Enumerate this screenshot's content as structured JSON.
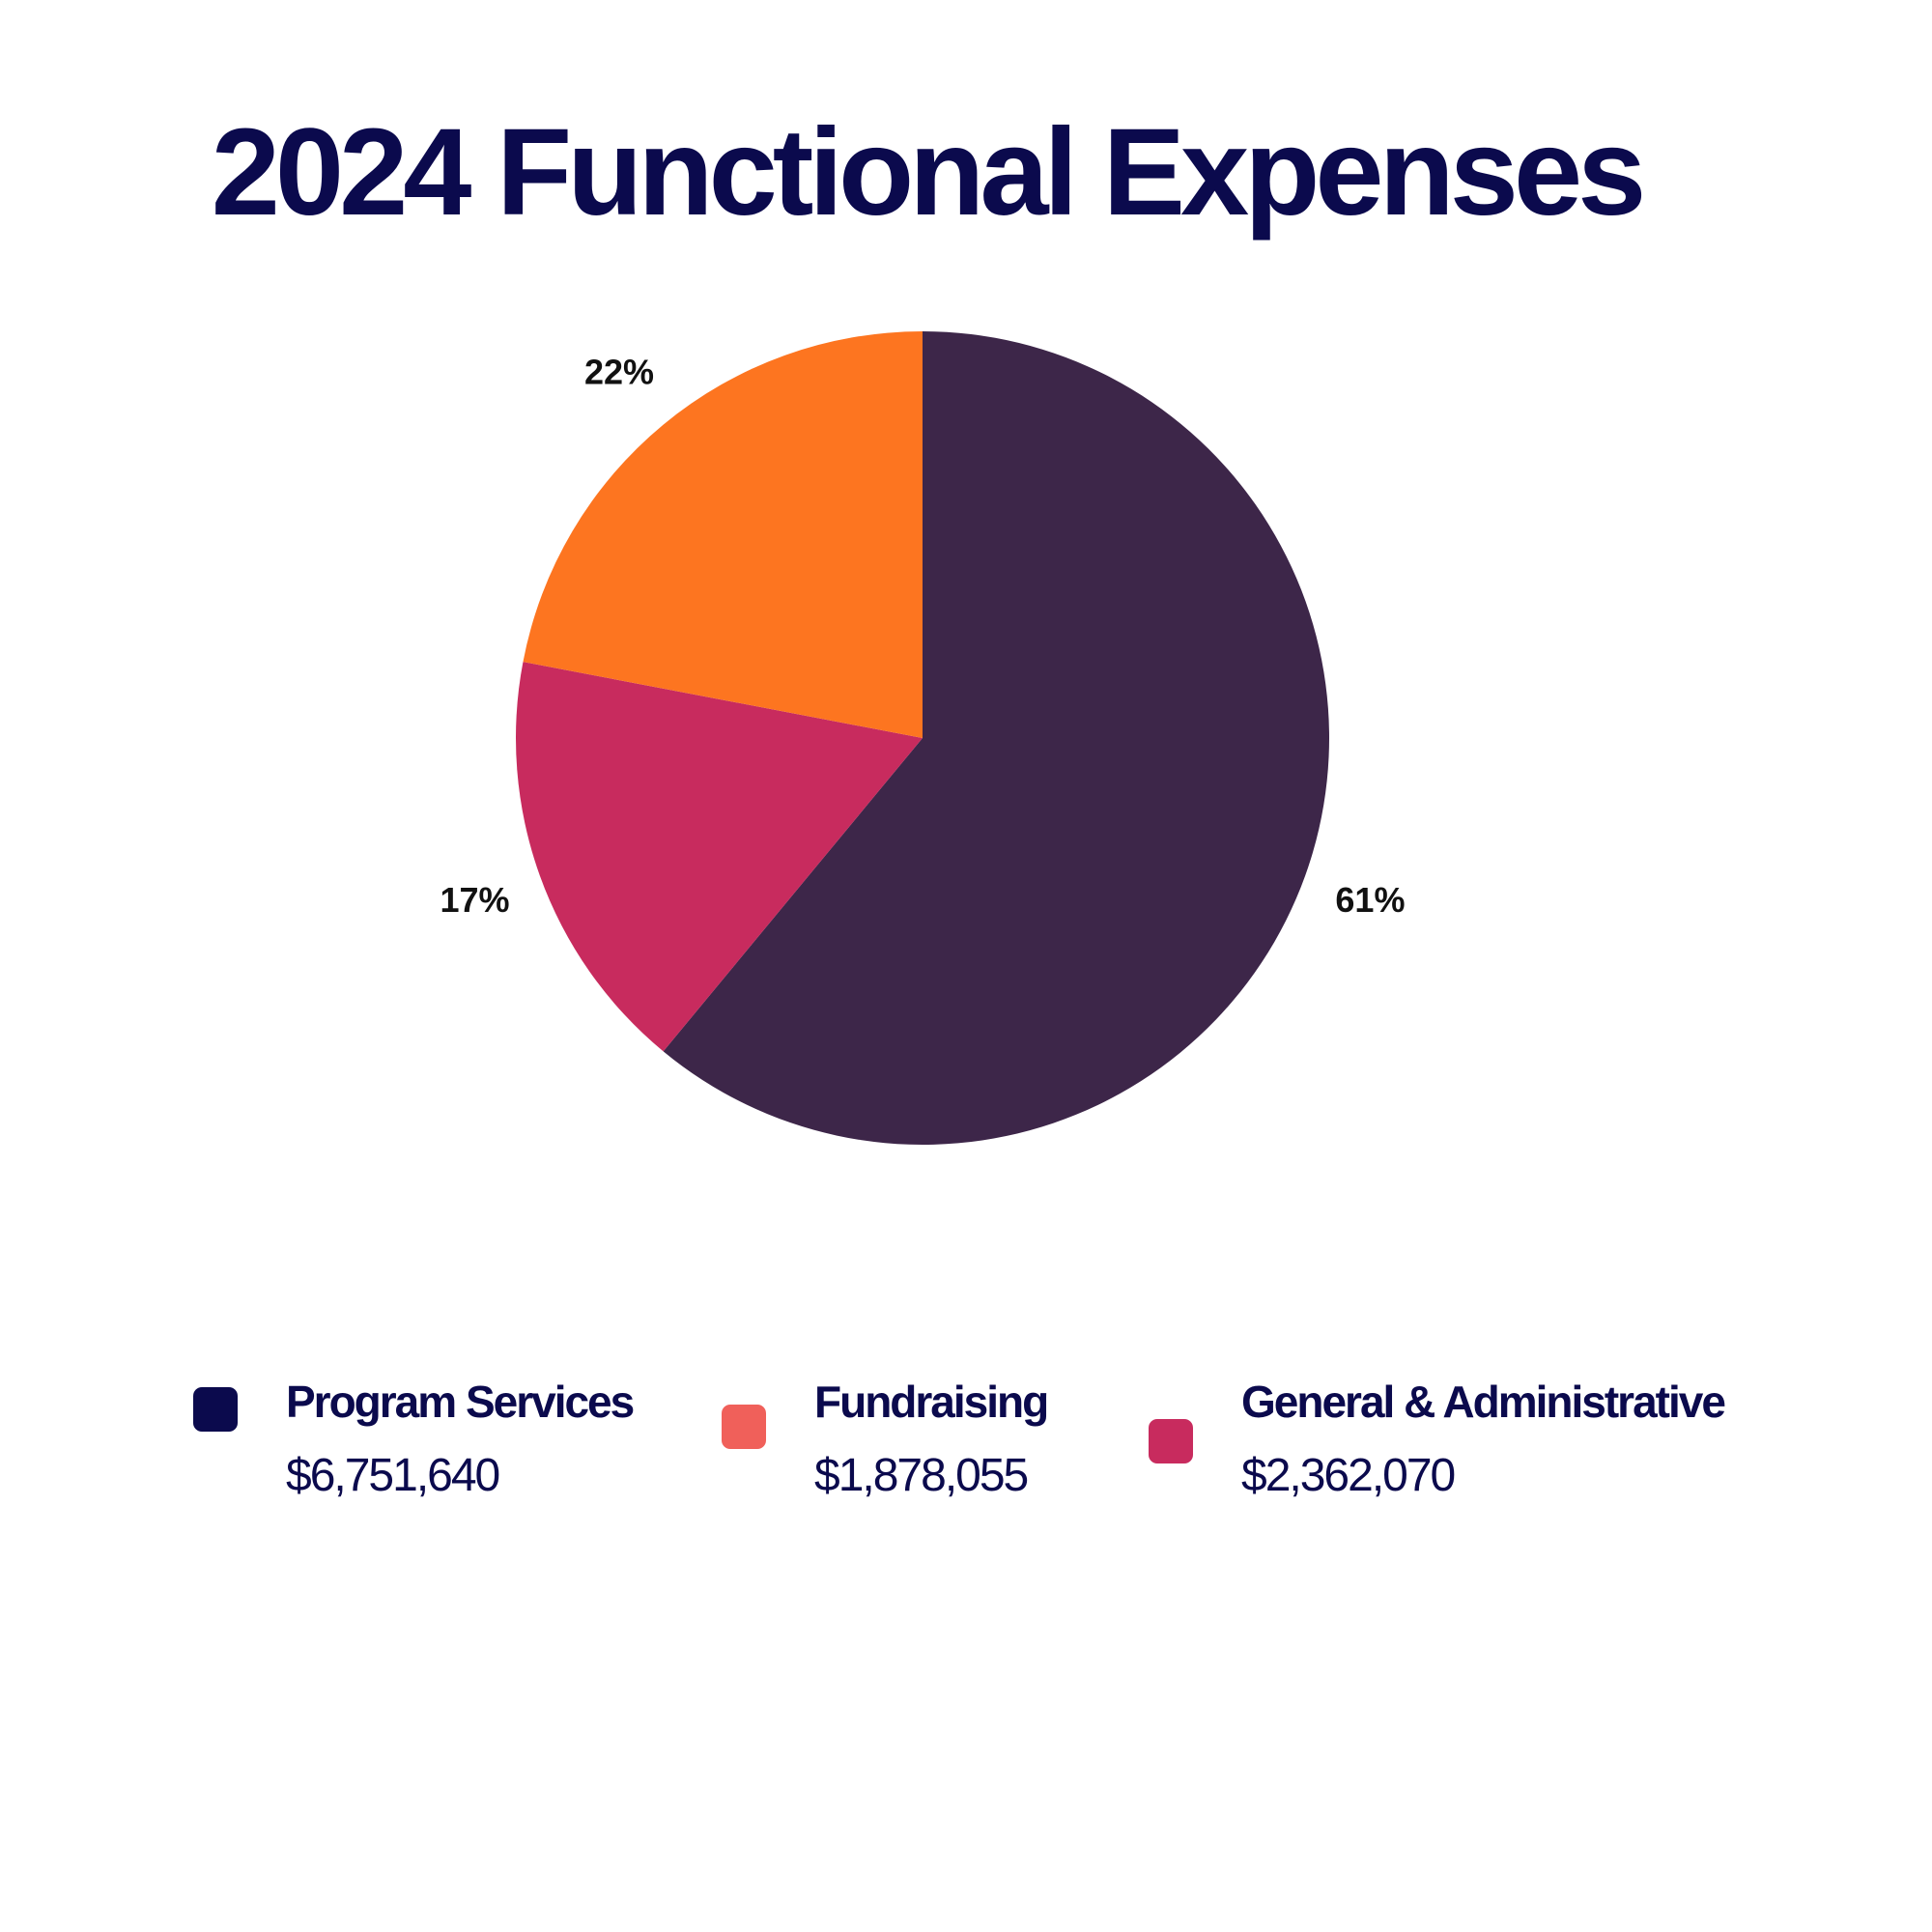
{
  "chart_data": {
    "type": "pie",
    "title": "2024 Functional Expenses",
    "slices": [
      {
        "label": "61%",
        "value": 61,
        "color": "#3d2649"
      },
      {
        "label": "17%",
        "value": 17,
        "color": "#c82b5e"
      },
      {
        "label": "22%",
        "value": 22,
        "color": "#fd7520"
      }
    ],
    "start_angle": "top, clockwise",
    "legend_placement": "bottom",
    "legend": [
      {
        "name": "Program Services",
        "amount": "$6,751,640",
        "color": "#0b0a4d"
      },
      {
        "name": "Fundraising",
        "amount": "$1,878,055",
        "color": "#f0605a"
      },
      {
        "name": "General & Administrative",
        "amount": "$2,362,070",
        "color": "#c82b5e"
      }
    ]
  }
}
